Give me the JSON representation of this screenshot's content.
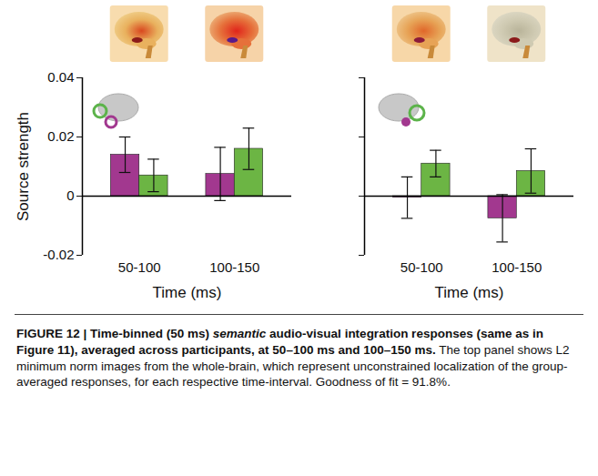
{
  "chart_data": [
    {
      "type": "bar",
      "categories": [
        "50-100",
        "100-150"
      ],
      "x_label": "Time (ms)",
      "y_label": "Source strength",
      "series": [
        {
          "color": "#a2388f",
          "values": [
            0.014,
            0.0075
          ],
          "errors": [
            0.006,
            0.009
          ]
        },
        {
          "color": "#6cb544",
          "values": [
            0.007,
            0.016
          ],
          "errors": [
            0.0055,
            0.007
          ]
        }
      ],
      "ylim": [
        -0.02,
        0.04
      ],
      "yticks": [
        -0.02,
        0,
        0.02,
        0.04
      ]
    },
    {
      "type": "bar",
      "categories": [
        "50-100",
        "100-150"
      ],
      "x_label": "Time (ms)",
      "series": [
        {
          "color": "#a2388f",
          "values": [
            -0.0005,
            -0.0075
          ],
          "errors": [
            0.007,
            0.008
          ]
        },
        {
          "color": "#6cb544",
          "values": [
            0.011,
            0.0085
          ],
          "errors": [
            0.0045,
            0.0075
          ]
        }
      ],
      "ylim": [
        -0.02,
        0.04
      ],
      "yticks": [
        -0.02,
        0,
        0.02,
        0.04
      ],
      "tick_labels": "x"
    }
  ],
  "caption": {
    "heading": [
      "FIGURE 12 | Time-binned (50 ms) ",
      "semantic",
      " audio-visual integration responses (same as in Figure 11), averaged across participants, at 50–100 ms and 100–150 ms."
    ],
    "body": "The top panel shows L2 minimum norm images from the whole-brain, which represent unconstrained localization of the group-averaged responses, for each respective time-interval. Goodness of fit = 91.8%."
  }
}
